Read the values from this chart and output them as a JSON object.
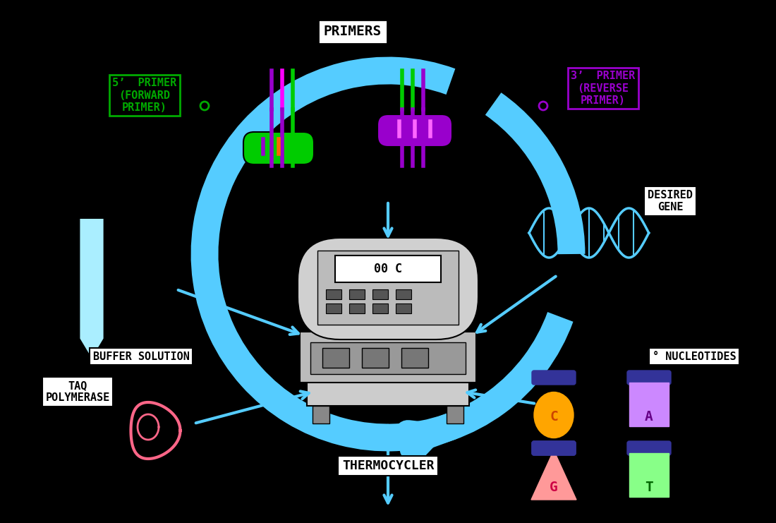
{
  "bg_color": "#000000",
  "title": "PRIMERS",
  "title_color": "#ffffff",
  "title_box_color": "#ffffff",
  "title_box_fill": "#000000",
  "labels": {
    "primers": "PRIMERS",
    "five_prime": "5’  PRIMER\n(FORWARD\nPRIMER)",
    "three_prime": "3’  PRIMER\n(REVERSE\nPRIMER)",
    "desired_gene": "DESIRED\nGENE",
    "buffer": "BUFFER SOLUTION",
    "taq": "TAQ\nPOLYMERASE",
    "nucleotides": "° NUCLEOTIDES",
    "thermocycler": "THERMOCYCLER"
  },
  "label_colors": {
    "primers": "#ffffff",
    "five_prime": "#00aa00",
    "three_prime": "#9900cc",
    "desired_gene": "#000000",
    "buffer": "#000000",
    "taq": "#000000",
    "nucleotides": "#000000",
    "thermocycler": "#000000"
  },
  "nucleotide_colors": {
    "C_body": "#FFA500",
    "C_text": "#cc4400",
    "A_body": "#cc88ff",
    "A_text": "#660088",
    "G_body": "#ff9999",
    "G_text": "#cc0044",
    "T_body": "#88ff88",
    "T_text": "#006600",
    "cap_color": "#333399"
  },
  "arrow_color": "#55ccff",
  "dna_color": "#55ccff",
  "primer_green": "#00cc00",
  "primer_purple": "#9900cc",
  "tube_color": "#aaeeff",
  "taq_color": "#ff6688"
}
